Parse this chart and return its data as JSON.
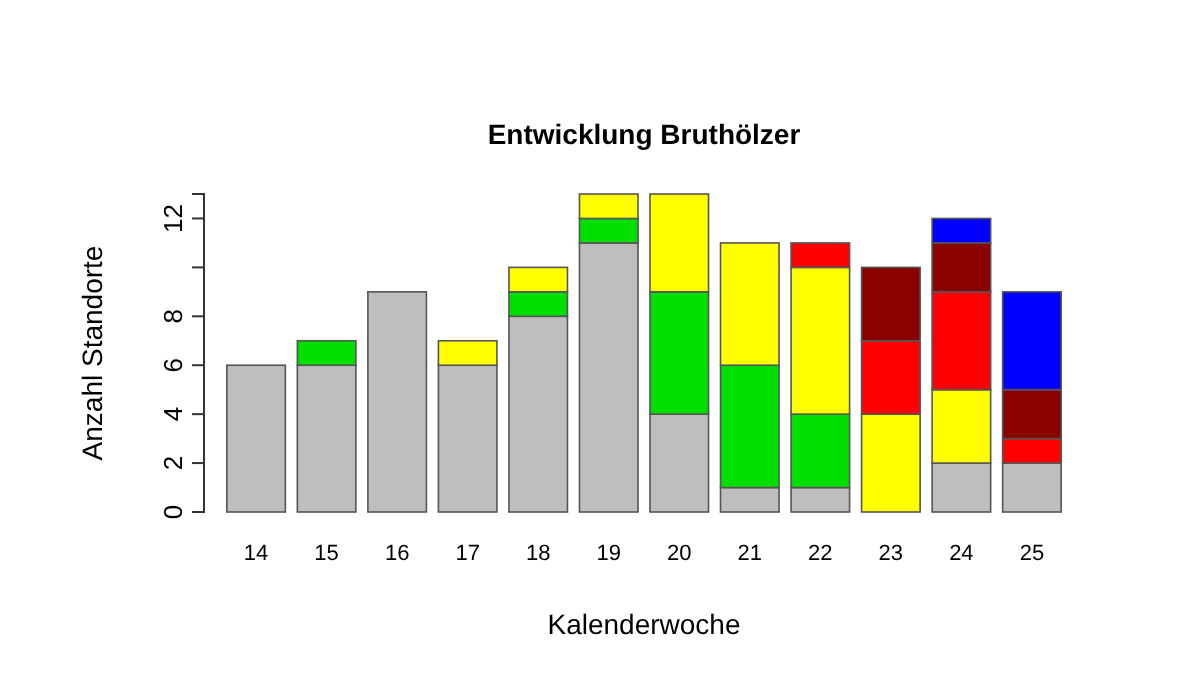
{
  "chart_data": {
    "type": "bar",
    "stacked": true,
    "title": "Entwicklung Bruthölzer",
    "xlabel": "Kalenderwoche",
    "ylabel": "Anzahl Standorte",
    "categories": [
      "14",
      "15",
      "16",
      "17",
      "18",
      "19",
      "20",
      "21",
      "22",
      "23",
      "24",
      "25"
    ],
    "series": [
      {
        "color": "#bebebe",
        "values": [
          6,
          6,
          9,
          6,
          8,
          11,
          4,
          1,
          1,
          0,
          2,
          2
        ]
      },
      {
        "color": "#00e000",
        "values": [
          0,
          1,
          0,
          0,
          1,
          1,
          5,
          5,
          3,
          0,
          0,
          0
        ]
      },
      {
        "color": "#ffff00",
        "values": [
          0,
          0,
          0,
          1,
          1,
          1,
          4,
          5,
          6,
          4,
          3,
          0
        ]
      },
      {
        "color": "#ff0000",
        "values": [
          0,
          0,
          0,
          0,
          0,
          0,
          0,
          0,
          1,
          3,
          4,
          1
        ]
      },
      {
        "color": "#8b0000",
        "values": [
          0,
          0,
          0,
          0,
          0,
          0,
          0,
          0,
          0,
          3,
          2,
          2
        ]
      },
      {
        "color": "#0000ff",
        "values": [
          0,
          0,
          0,
          0,
          0,
          0,
          0,
          0,
          0,
          0,
          1,
          4
        ]
      }
    ],
    "ylim": [
      0,
      13
    ],
    "yticks": [
      0,
      2,
      4,
      6,
      8,
      {
        "value": 10,
        "label": null
      },
      12
    ],
    "grid": false
  }
}
